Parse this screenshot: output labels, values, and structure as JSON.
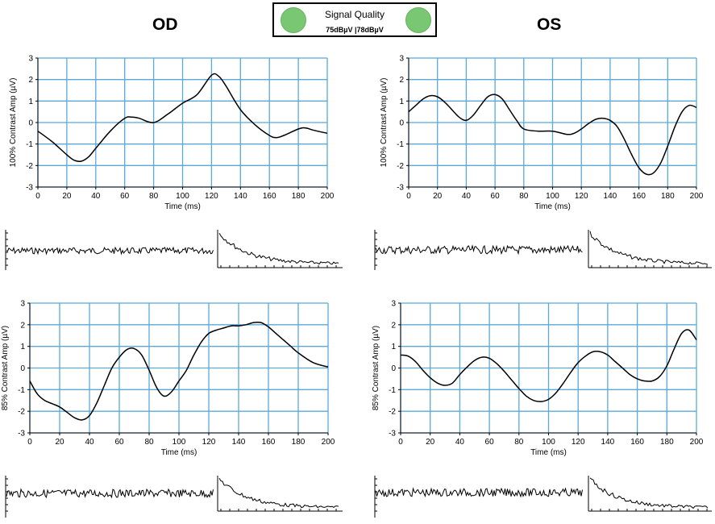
{
  "header": {
    "left_eye": "OD",
    "right_eye": "OS",
    "signal_quality": {
      "title": "Signal Quality",
      "values": "75dBµV |78dBµV",
      "indicator_color": "#79c772"
    }
  },
  "colors": {
    "grid": "#5aa9d6",
    "trace": "#000000"
  },
  "chart_data": [
    {
      "id": "od-100",
      "type": "line",
      "eye": "OD",
      "ylabel": "100% Contrast Amp (µV)",
      "xlabel": "Time (ms)",
      "xlim": [
        0,
        200
      ],
      "ylim": [
        -3,
        3
      ],
      "xticks": [
        "0",
        "20",
        "40",
        "60",
        "80",
        "100",
        "120",
        "140",
        "160",
        "180",
        "200"
      ],
      "yticks": [
        "3",
        "2",
        "1",
        "0",
        "-1",
        "-2",
        "-3"
      ],
      "grid": true,
      "x": [
        0,
        10,
        20,
        25,
        30,
        35,
        40,
        50,
        60,
        65,
        70,
        80,
        90,
        100,
        110,
        120,
        125,
        130,
        140,
        150,
        160,
        165,
        170,
        180,
        185,
        190,
        200
      ],
      "y": [
        -0.4,
        -0.9,
        -1.5,
        -1.75,
        -1.8,
        -1.6,
        -1.2,
        -0.4,
        0.2,
        0.25,
        0.2,
        0.0,
        0.4,
        0.9,
        1.3,
        2.2,
        2.15,
        1.7,
        0.6,
        -0.1,
        -0.6,
        -0.7,
        -0.6,
        -0.3,
        -0.25,
        -0.35,
        -0.5
      ]
    },
    {
      "id": "os-100",
      "type": "line",
      "eye": "OS",
      "ylabel": "100% Contrast Amp (µV)",
      "xlabel": "Time (ms)",
      "xlim": [
        0,
        200
      ],
      "ylim": [
        -3,
        3
      ],
      "xticks": [
        "0",
        "20",
        "40",
        "60",
        "80",
        "100",
        "120",
        "140",
        "160",
        "180",
        "200"
      ],
      "yticks": [
        "3",
        "2",
        "1",
        "0",
        "-1",
        "-2",
        "-3"
      ],
      "grid": true,
      "x": [
        0,
        5,
        10,
        15,
        20,
        25,
        30,
        35,
        40,
        45,
        50,
        55,
        60,
        65,
        70,
        75,
        80,
        90,
        100,
        110,
        115,
        120,
        125,
        130,
        135,
        140,
        145,
        150,
        155,
        160,
        165,
        170,
        175,
        180,
        185,
        190,
        195,
        200
      ],
      "y": [
        0.5,
        0.8,
        1.1,
        1.25,
        1.2,
        0.95,
        0.6,
        0.25,
        0.1,
        0.35,
        0.8,
        1.2,
        1.3,
        1.1,
        0.6,
        0.1,
        -0.3,
        -0.4,
        -0.4,
        -0.55,
        -0.5,
        -0.3,
        -0.05,
        0.15,
        0.2,
        0.1,
        -0.2,
        -0.8,
        -1.5,
        -2.1,
        -2.4,
        -2.35,
        -1.9,
        -1.1,
        -0.2,
        0.5,
        0.8,
        0.7
      ]
    },
    {
      "id": "od-85",
      "type": "line",
      "eye": "OD",
      "ylabel": "85% Contrast Amp (µV)",
      "xlabel": "Time (ms)",
      "xlim": [
        0,
        200
      ],
      "ylim": [
        -3,
        3
      ],
      "xticks": [
        "0",
        "20",
        "40",
        "60",
        "80",
        "100",
        "120",
        "140",
        "160",
        "180",
        "200"
      ],
      "yticks": [
        "3",
        "2",
        "1",
        "0",
        "-1",
        "-2",
        "-3"
      ],
      "grid": true,
      "x": [
        0,
        5,
        10,
        15,
        20,
        25,
        30,
        35,
        40,
        45,
        50,
        55,
        60,
        65,
        70,
        75,
        80,
        85,
        90,
        95,
        100,
        105,
        110,
        115,
        120,
        125,
        130,
        135,
        140,
        145,
        150,
        155,
        160,
        165,
        170,
        175,
        180,
        190,
        200
      ],
      "y": [
        -0.6,
        -1.2,
        -1.5,
        -1.65,
        -1.8,
        -2.05,
        -2.3,
        -2.4,
        -2.2,
        -1.6,
        -0.8,
        0.0,
        0.5,
        0.85,
        0.9,
        0.6,
        -0.1,
        -0.9,
        -1.3,
        -1.1,
        -0.6,
        -0.1,
        0.6,
        1.2,
        1.6,
        1.75,
        1.85,
        1.95,
        1.95,
        2.0,
        2.1,
        2.1,
        1.9,
        1.6,
        1.3,
        1.0,
        0.7,
        0.25,
        0.05
      ]
    },
    {
      "id": "os-85",
      "type": "line",
      "eye": "OS",
      "ylabel": "85% Contrast Amp (µV)",
      "xlabel": "Time (ms)",
      "xlim": [
        0,
        200
      ],
      "ylim": [
        -3,
        3
      ],
      "xticks": [
        "0",
        "20",
        "40",
        "60",
        "80",
        "100",
        "120",
        "140",
        "160",
        "180",
        "200"
      ],
      "yticks": [
        "3",
        "2",
        "1",
        "0",
        "-1",
        "-2",
        "-3"
      ],
      "grid": true,
      "x": [
        0,
        5,
        10,
        15,
        20,
        25,
        30,
        35,
        40,
        45,
        50,
        55,
        60,
        65,
        70,
        75,
        80,
        85,
        90,
        95,
        100,
        105,
        110,
        115,
        120,
        125,
        130,
        135,
        140,
        145,
        150,
        155,
        160,
        165,
        170,
        175,
        180,
        185,
        190,
        195,
        200
      ],
      "y": [
        0.6,
        0.55,
        0.3,
        -0.1,
        -0.45,
        -0.7,
        -0.8,
        -0.7,
        -0.3,
        0.05,
        0.35,
        0.5,
        0.45,
        0.2,
        -0.15,
        -0.55,
        -0.95,
        -1.3,
        -1.5,
        -1.55,
        -1.45,
        -1.15,
        -0.7,
        -0.2,
        0.25,
        0.55,
        0.75,
        0.75,
        0.6,
        0.3,
        0.0,
        -0.3,
        -0.5,
        -0.6,
        -0.6,
        -0.4,
        0.1,
        0.9,
        1.6,
        1.75,
        1.3
      ]
    }
  ]
}
